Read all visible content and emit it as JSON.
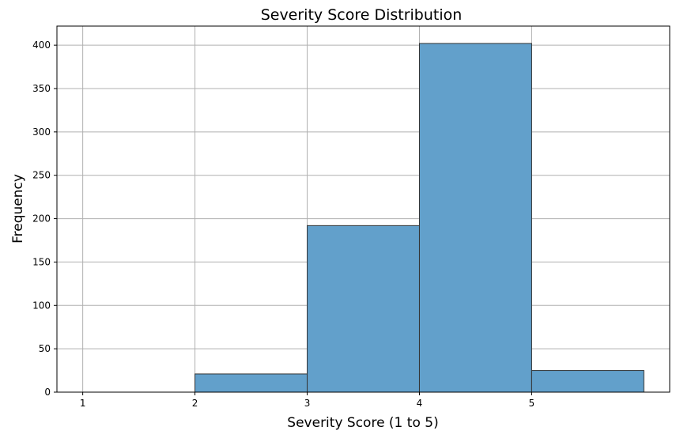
{
  "chart_data": {
    "type": "bar",
    "title": "Severity Score Distribution",
    "xlabel": "Severity Score (1 to 5)",
    "ylabel": "Frequency",
    "bins": [
      {
        "start": 1,
        "end": 2,
        "value": 0
      },
      {
        "start": 2,
        "end": 3,
        "value": 21
      },
      {
        "start": 3,
        "end": 4,
        "value": 192
      },
      {
        "start": 4,
        "end": 5,
        "value": 402
      },
      {
        "start": 5,
        "end": 6,
        "value": 25
      }
    ],
    "xticks": [
      1,
      2,
      3,
      4,
      5
    ],
    "yticks": [
      0,
      50,
      100,
      150,
      200,
      250,
      300,
      350,
      400
    ],
    "xlim": [
      0.77,
      6.23
    ],
    "ylim": [
      0,
      422
    ],
    "grid": true,
    "bar_color": "#62a0cb",
    "edge_color": "#333333"
  }
}
